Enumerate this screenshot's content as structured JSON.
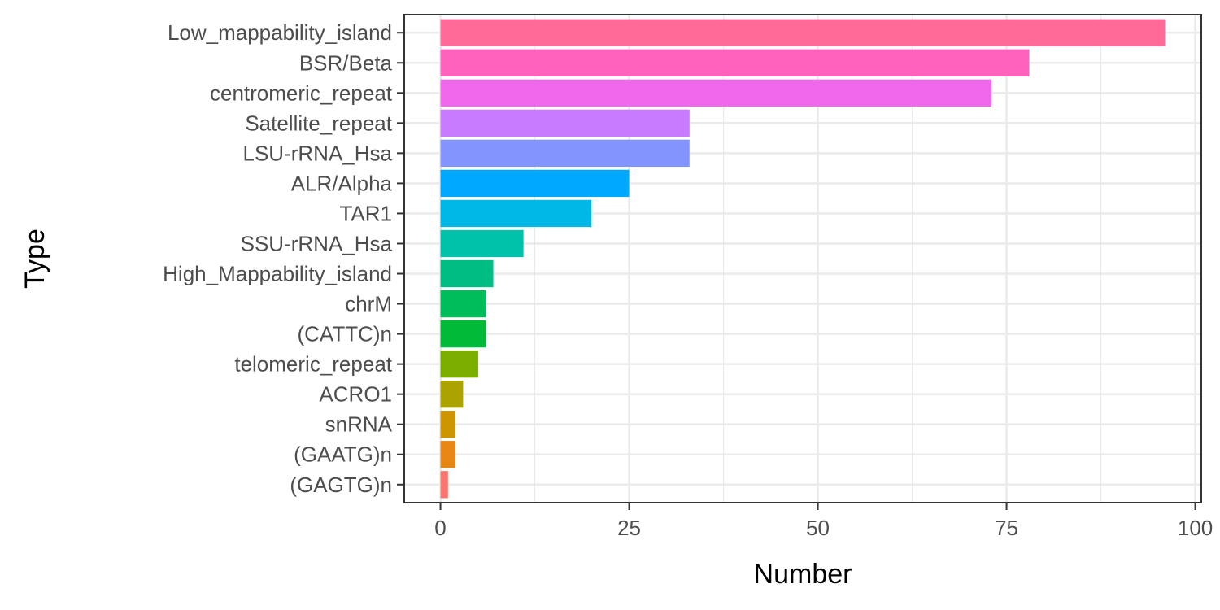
{
  "chart_data": {
    "type": "bar",
    "orientation": "horizontal",
    "title": "",
    "xlabel": "Number",
    "ylabel": "Type",
    "xlim": [
      0,
      100
    ],
    "xticks": [
      0,
      25,
      50,
      75,
      100
    ],
    "xtick_labels": [
      "0",
      "25",
      "50",
      "75",
      "100"
    ],
    "grid": true,
    "legend": "none",
    "categories": [
      "Low_mappability_island",
      "BSR/Beta",
      "centromeric_repeat",
      "Satellite_repeat",
      "LSU-rRNA_Hsa",
      "ALR/Alpha",
      "TAR1",
      "SSU-rRNA_Hsa",
      "High_Mappability_island",
      "chrM",
      "(CATTC)n",
      "telomeric_repeat",
      "ACRO1",
      "snRNA",
      "(GAATG)n",
      "(GAGTG)n"
    ],
    "values": [
      96,
      78,
      73,
      33,
      33,
      25,
      20,
      11,
      7,
      6,
      6,
      5,
      3,
      2,
      2,
      1
    ],
    "colors": [
      "#FF6A98",
      "#FF62BC",
      "#EF67EB",
      "#C77CFF",
      "#8494FF",
      "#00A9FF",
      "#00B8E7",
      "#00C1AA",
      "#00BE81",
      "#00BD5C",
      "#00BA38",
      "#7CAE00",
      "#ABA300",
      "#CD9600",
      "#E68613",
      "#F8766D"
    ]
  }
}
